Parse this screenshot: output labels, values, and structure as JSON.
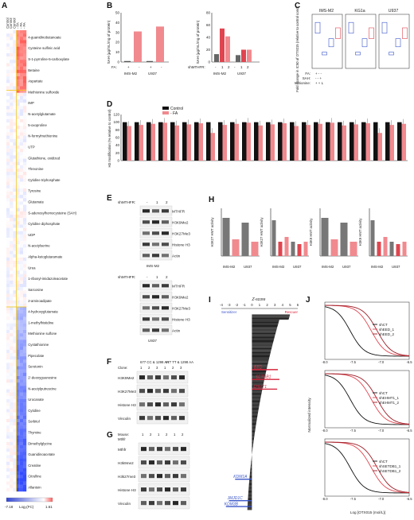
{
  "panel_letters": [
    "A",
    "B",
    "C",
    "D",
    "E",
    "F",
    "G",
    "H",
    "I",
    "J"
  ],
  "panel_a": {
    "column_labels": [
      "Control",
      "Control",
      "Control",
      "- FA",
      "- FA",
      "- FA"
    ],
    "metabolites": [
      "4-guanidinobutanoate",
      "Cysteine sulfinic acid",
      "S-1-pyrroline-5-carboxylate",
      "Betaine",
      "Aspartate",
      "Methionine sulfoxide",
      "IMP",
      "N-acetylglutamate",
      "5-oxoproline",
      "N-formylmethionine",
      "UTP",
      "Glutathione, oxidized",
      "Threonine",
      "Cytidine triphosphate",
      "Tyrosine",
      "Glutamate",
      "S-adenosylhomocysteine (SAH)",
      "Cytidine diphosphate",
      "UDP",
      "N-acetylserine",
      "Alpha-ketoglutaramate",
      "Urea",
      "1-ribosyl-imidazoleacetate",
      "Sarcosine",
      "2-aminoadipate",
      "4-hydroxyglutamate",
      "1-methylhistidine",
      "Methionine sulfone",
      "Cystathionine",
      "Pipecolate",
      "Serotonin",
      "2'-deoxyguanosine",
      "N-acetylputrescine",
      "Urocanate",
      "Cytidine",
      "Sorbitol",
      "Thymine",
      "Dimethylglycine",
      "Guanidinoacetate",
      "Creatine",
      "Citrulline",
      "Allantoin"
    ],
    "colorbar_min": "-7.18",
    "colorbar_max": "1.61",
    "colorbar_label": "Log₂(FC)"
  },
  "panel_b": {
    "ylabel": "SAH (µg/mL/mg of protein)",
    "fa_label": "FA:",
    "mthfr_label": "shMTHFR:",
    "left_tick_labels": [
      "0",
      "10",
      "20",
      "30",
      "40",
      "50"
    ],
    "right_tick_labels": [
      "0",
      "20",
      "40",
      "60",
      "80"
    ],
    "left_fa_marks": [
      "+",
      "-",
      "+",
      "-"
    ],
    "right_sh_marks": [
      "-",
      "1",
      "2",
      "-",
      "1",
      "2"
    ],
    "groups": [
      "IMS-M2",
      "U937"
    ]
  },
  "panel_c": {
    "ylabel": "Fold change in IC50 of OTX015 (relative to control condition)",
    "titles": [
      "IMS-M2",
      "KG1a",
      "U937"
    ],
    "row_labels": [
      "FA:",
      "SAH:",
      "Methionine:"
    ],
    "marks": [
      "+ - -",
      "- - +",
      "+ + L"
    ]
  },
  "panel_d": {
    "ylabel": "H3 modification (% relative to control)",
    "legend": [
      "Control",
      "- FA"
    ],
    "tick_labels": [
      "0",
      "20",
      "40",
      "60",
      "80",
      "100",
      "120"
    ]
  },
  "panel_e": {
    "header": "shMTHFR:",
    "lanes": [
      "-",
      "1",
      "2"
    ],
    "blots": [
      "MTHFR",
      "H3K9Me2",
      "H3K27Me3",
      "Histone H3",
      "Actin"
    ],
    "cells": [
      "IMS-M2",
      "U937"
    ]
  },
  "panel_f": {
    "header_left": "677 CC & 1298 AA",
    "header_right": "677 TT & 1298 AA",
    "clone_label": "Clone:",
    "clones": [
      "1",
      "2",
      "3",
      "1",
      "2",
      "3"
    ],
    "blots": [
      "H3K9Me2",
      "H3K27Me3",
      "Histone H3",
      "Vinculin"
    ]
  },
  "panel_g": {
    "mouse_label": "Mouse:",
    "mthfr_label": "Mthfr",
    "mice": [
      "1",
      "2",
      "1",
      "2",
      "1",
      "2"
    ],
    "blots": [
      "Mthfr",
      "H3k9me2",
      "H3k27me3",
      "Histone H3",
      "Vinculin"
    ]
  },
  "panel_h": {
    "ylabels": [
      "H3K27 HMT activity",
      "H3K27 HMT activity",
      "H3K9 HMT activity",
      "H3K9 HMT activity"
    ],
    "cells": [
      "IMS-M2",
      "U937"
    ]
  },
  "panel_i": {
    "axis_label": "Z-score",
    "ticks": [
      "-4",
      "-3",
      "-2",
      "-1",
      "0",
      "1",
      "2",
      "3",
      "4",
      "5",
      "6"
    ],
    "left_side": "Sensitizer",
    "right_side": "Rescuer",
    "rescue_hits": [
      "EED",
      "SETDB1",
      "EHMT1"
    ],
    "sensitizer_hits": [
      "KDM1A",
      "JMJD1C",
      "KDM3B"
    ]
  },
  "panel_j": {
    "ylabel": "Normalized intensity",
    "xlabel": "Log [OTX015 (mol/L)]",
    "x_ticks": [
      "-8.0",
      "-7.5",
      "-7.0",
      "-6.5"
    ],
    "legends": [
      [
        "shCT",
        "shEED_1",
        "shEED_2"
      ],
      [
        "shCT",
        "shEHMT1_1",
        "shEHMT1_2"
      ],
      [
        "shCT",
        "shSETDB1_1",
        "shSETDB1_2"
      ]
    ]
  },
  "colors": {
    "control": "#444444",
    "fa": "#e0454f",
    "blue": "#3a56c8",
    "red": "#d7263d"
  }
}
